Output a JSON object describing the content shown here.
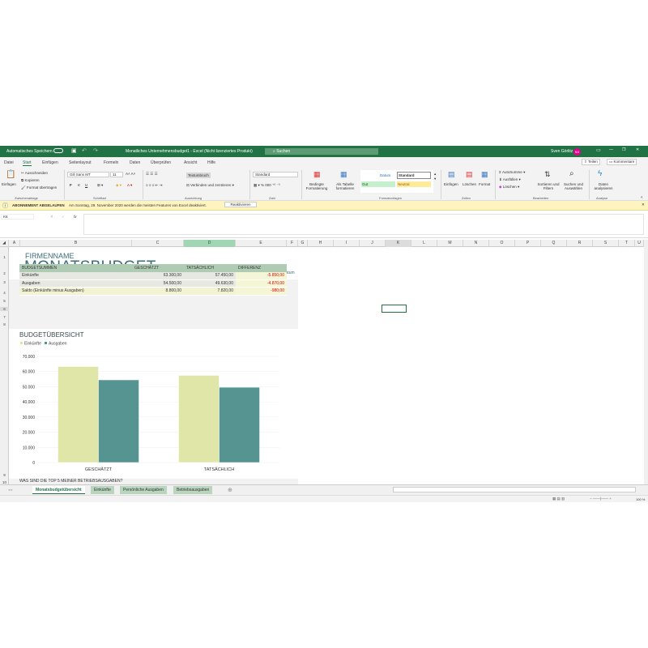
{
  "titlebar": {
    "autosave": "Automatisches Speichern",
    "title": "Monatliches Unternehmensbudget1  -  Excel (Nicht lizenziertes Produkt)",
    "search": "Suchen",
    "user": "Sven Görlitz",
    "initials": "SG"
  },
  "menu": [
    "Datei",
    "Start",
    "Einfügen",
    "Seitenlayout",
    "Formeln",
    "Daten",
    "Überprüfen",
    "Ansicht",
    "Hilfe"
  ],
  "share": "Teilen",
  "comments": "Kommentare",
  "ribbon": {
    "paste": "Einfügen",
    "cut": "Ausschneiden",
    "copy": "Kopieren",
    "format_painter": "Format übertragen",
    "clipboard": "Zwischenablage",
    "font_name": "Gill Sans MT",
    "font_size": "11",
    "bold": "F",
    "italic": "K",
    "underline": "U",
    "font_group": "Schriftart",
    "wrap": "Textumbruch",
    "merge": "Verbinden und zentrieren",
    "align_group": "Ausrichtung",
    "number_format": "Standard",
    "number_group": "Zahl",
    "cond_format": "Bedingte Formatierung",
    "as_table": "Als Tabelle formatieren",
    "style_datum": "Datum",
    "style_standard": "Standard",
    "style_gut": "Gut",
    "style_neutral": "Neutral",
    "styles_group": "Formatvorlagen",
    "insert": "Einfügen",
    "delete": "Löschen",
    "format": "Format",
    "cells_group": "Zellen",
    "autosum": "AutoSumme",
    "fill": "Ausfüllen",
    "clear": "Löschen",
    "sort": "Sortieren und Filtern",
    "find": "Suchen und Auswählen",
    "edit_group": "Bearbeiten",
    "analyze": "Daten analysieren",
    "analysis_group": "Analyse"
  },
  "infobar": {
    "title": "ABONNEMENT ABGELAUFEN",
    "message": "Am Sonntag, 29. November 2020 werden die meisten Features von Excel deaktiviert.",
    "button": "Reaktivieren"
  },
  "namebox": "K6",
  "columns": [
    "A",
    "B",
    "C",
    "D",
    "E",
    "F",
    "G",
    "H",
    "I",
    "J",
    "K",
    "L",
    "M",
    "N",
    "O",
    "P",
    "Q",
    "R",
    "S",
    "T",
    "U"
  ],
  "rows": [
    "1",
    "2",
    "3",
    "4",
    "5",
    "6",
    "7",
    "8",
    "9",
    "10"
  ],
  "sheet": {
    "company": "FIRMENNAME",
    "title": "MONATSBUDGET",
    "date_label": "Datum",
    "table_headers": [
      "BUDGETSUMMEN",
      "GESCHÄTZT",
      "TATSÄCHLICH",
      "DIFFERENZ"
    ],
    "table_rows": [
      [
        "Einkünfte",
        "63.300,00",
        "57.450,00",
        "-5.850,00"
      ],
      [
        "Ausgaben",
        "54.500,00",
        "49.630,00",
        "-4.870,00"
      ],
      [
        "Saldo (Einkünfte minus Ausgaben)",
        "8.800,00",
        "7.820,00",
        "-980,00"
      ]
    ],
    "chart_title": "BUDGETÜBERSICHT",
    "row10": "WAS SIND DIE TOP 5 MEINER BETRIEBSAUSGABEN?"
  },
  "chart_data": {
    "type": "bar",
    "title": "BUDGETÜBERSICHT",
    "categories": [
      "GESCHÄTZT",
      "TATSÄCHLICH"
    ],
    "series": [
      {
        "name": "Einkünfte",
        "values": [
          63300,
          57450
        ],
        "color": "#e0e6a8"
      },
      {
        "name": "Ausgaben",
        "values": [
          54500,
          49630
        ],
        "color": "#559490"
      }
    ],
    "ylim": [
      0,
      70000
    ],
    "yticks": [
      "0",
      "10.000",
      "20.000",
      "30.000",
      "40.000",
      "50.000",
      "60.000",
      "70.000"
    ],
    "legend": "top-left",
    "grid": true
  },
  "sheet_tabs": [
    "Monatsbudgetübersicht",
    "Einkünfte",
    "Persönliche Ausgaben",
    "Betriebsausgaben"
  ],
  "zoom": "100 %"
}
